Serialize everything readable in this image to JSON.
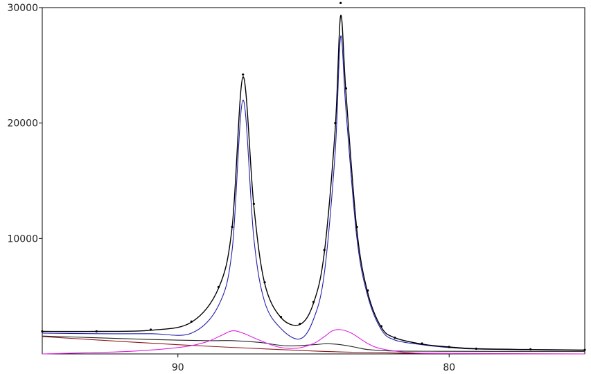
{
  "chart_data": {
    "type": "line",
    "title": "",
    "xlabel": "",
    "ylabel": "",
    "x_reversed": true,
    "xlim": [
      95,
      75
    ],
    "ylim": [
      0,
      30000
    ],
    "grid": false,
    "legend": "none",
    "x_ticks": [
      90,
      80
    ],
    "y_ticks": [
      10000,
      20000,
      30000
    ],
    "peaks": [
      {
        "center": 87.6,
        "height": 24000
      },
      {
        "center": 84.0,
        "height": 29300
      }
    ],
    "series": [
      {
        "role": "measured-data",
        "style": "dots",
        "color": "#000000",
        "x": [
          95,
          93,
          91,
          89.5,
          88.5,
          88,
          87.6,
          87.2,
          86.8,
          86.2,
          85.5,
          85,
          84.6,
          84.2,
          84.0,
          83.8,
          83.4,
          83,
          82.5,
          82,
          81,
          80,
          79,
          77,
          75
        ],
        "values": [
          1950,
          1950,
          2100,
          2800,
          5800,
          11000,
          24200,
          13000,
          6200,
          3200,
          2600,
          4500,
          9000,
          20000,
          30400,
          23000,
          11000,
          5500,
          2400,
          1400,
          900,
          600,
          450,
          400,
          350
        ]
      },
      {
        "role": "envelope",
        "style": "line",
        "color": "#000000",
        "x": [
          95,
          93,
          91,
          89.5,
          88.5,
          88,
          87.6,
          87.2,
          86.8,
          86.2,
          85.5,
          85,
          84.6,
          84.2,
          84.0,
          83.8,
          83.4,
          83,
          82.5,
          82,
          81,
          80,
          79,
          77,
          75
        ],
        "values": [
          1950,
          1950,
          2050,
          2750,
          5700,
          11000,
          24000,
          12800,
          6100,
          3150,
          2550,
          4400,
          8800,
          19500,
          29300,
          22500,
          10700,
          5300,
          2300,
          1400,
          850,
          600,
          450,
          380,
          330
        ]
      },
      {
        "role": "main-component",
        "style": "line",
        "color": "#1f1fa8",
        "x": [
          95,
          93,
          91,
          89.5,
          88.5,
          88,
          87.6,
          87.2,
          86.8,
          86.2,
          85.5,
          85,
          84.6,
          84.2,
          84.0,
          83.8,
          83.4,
          83,
          82.5,
          82,
          81,
          80,
          79,
          77,
          75
        ],
        "values": [
          1800,
          1750,
          1750,
          1800,
          4200,
          9000,
          22000,
          10000,
          4500,
          2200,
          1300,
          3000,
          7000,
          17500,
          27500,
          21000,
          10000,
          5000,
          2100,
          1200,
          800,
          550,
          420,
          360,
          320
        ]
      },
      {
        "role": "satellite-component",
        "style": "line",
        "color": "#e01ee0",
        "x": [
          95,
          92,
          90,
          89,
          88.4,
          88,
          87.6,
          87,
          86.3,
          85.6,
          85,
          84.6,
          84.3,
          84.0,
          83.6,
          83,
          82.5,
          81.5,
          80,
          75
        ],
        "values": [
          0,
          200,
          550,
          1000,
          1600,
          2000,
          1800,
          1200,
          600,
          500,
          900,
          1500,
          2000,
          2100,
          1800,
          900,
          450,
          120,
          30,
          0
        ]
      },
      {
        "role": "background",
        "style": "line",
        "color": "#222222",
        "x": [
          95,
          93,
          91,
          89,
          88,
          87,
          86,
          85,
          84.5,
          84,
          83.5,
          83,
          82,
          80,
          77,
          75
        ],
        "values": [
          1550,
          1400,
          1250,
          1150,
          1150,
          1000,
          700,
          800,
          880,
          800,
          600,
          380,
          250,
          230,
          220,
          220
        ]
      },
      {
        "role": "baseline",
        "style": "line",
        "color": "#8b1a1a",
        "x": [
          95,
          90,
          85,
          82,
          80,
          75
        ],
        "values": [
          1500,
          800,
          250,
          80,
          40,
          0
        ]
      }
    ]
  }
}
